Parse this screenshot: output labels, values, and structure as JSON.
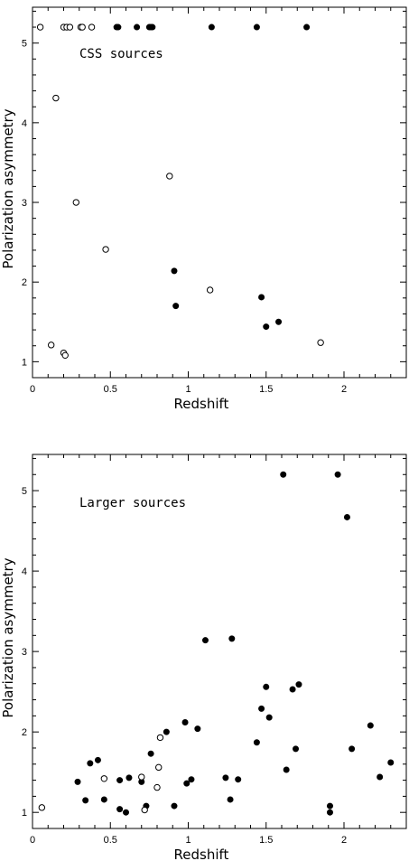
{
  "chart_data": [
    {
      "type": "scatter",
      "title": "",
      "annotation": "CSS sources",
      "xlabel": "Redshift",
      "ylabel": "Polarization asymmetry",
      "xlim": [
        0,
        2.4
      ],
      "ylim": [
        0.8,
        5.45
      ],
      "xticks": [
        0,
        0.5,
        1,
        1.5,
        2
      ],
      "xtick_labels": [
        "0",
        "0.5",
        "1",
        "1.5",
        "2"
      ],
      "yticks": [
        1,
        2,
        3,
        4,
        5
      ],
      "ytick_labels": [
        "1",
        "2",
        "3",
        "4",
        "5"
      ],
      "legend": "none",
      "grid": false,
      "series": [
        {
          "marker": "filled",
          "points": [
            [
              0.54,
              5.2
            ],
            [
              0.55,
              5.2
            ],
            [
              0.67,
              5.2
            ],
            [
              0.75,
              5.2
            ],
            [
              0.76,
              5.2
            ],
            [
              0.77,
              5.2
            ],
            [
              1.15,
              5.2
            ],
            [
              1.44,
              5.2
            ],
            [
              1.76,
              5.2
            ],
            [
              0.91,
              2.14
            ],
            [
              0.92,
              1.7
            ],
            [
              1.47,
              1.81
            ],
            [
              1.5,
              1.44
            ],
            [
              1.58,
              1.5
            ]
          ]
        },
        {
          "marker": "open",
          "points": [
            [
              0.05,
              5.2
            ],
            [
              0.2,
              5.2
            ],
            [
              0.22,
              5.2
            ],
            [
              0.24,
              5.2
            ],
            [
              0.31,
              5.2
            ],
            [
              0.32,
              5.2
            ],
            [
              0.38,
              5.2
            ],
            [
              0.15,
              4.31
            ],
            [
              0.28,
              3.0
            ],
            [
              0.47,
              2.41
            ],
            [
              0.88,
              3.33
            ],
            [
              1.14,
              1.9
            ],
            [
              0.12,
              1.21
            ],
            [
              0.2,
              1.11
            ],
            [
              0.21,
              1.08
            ],
            [
              1.85,
              1.24
            ]
          ]
        }
      ]
    },
    {
      "type": "scatter",
      "title": "",
      "annotation": "Larger sources",
      "xlabel": "Redshift",
      "ylabel": "Polarization asymmetry",
      "xlim": [
        0,
        2.4
      ],
      "ylim": [
        0.8,
        5.45
      ],
      "xticks": [
        0,
        0.5,
        1,
        1.5,
        2
      ],
      "xtick_labels": [
        "0",
        "0.5",
        "1",
        "1.5",
        "2"
      ],
      "yticks": [
        1,
        2,
        3,
        4,
        5
      ],
      "ytick_labels": [
        "1",
        "2",
        "3",
        "4",
        "5"
      ],
      "legend": "none",
      "grid": false,
      "series": [
        {
          "marker": "filled",
          "points": [
            [
              1.61,
              5.2
            ],
            [
              1.96,
              5.2
            ],
            [
              2.02,
              4.67
            ],
            [
              0.29,
              1.38
            ],
            [
              0.34,
              1.15
            ],
            [
              0.37,
              1.61
            ],
            [
              0.42,
              1.65
            ],
            [
              0.46,
              1.16
            ],
            [
              0.56,
              1.4
            ],
            [
              0.56,
              1.04
            ],
            [
              0.6,
              1.0
            ],
            [
              0.62,
              1.43
            ],
            [
              0.7,
              1.38
            ],
            [
              0.73,
              1.08
            ],
            [
              0.76,
              1.73
            ],
            [
              0.86,
              2.0
            ],
            [
              0.91,
              1.08
            ],
            [
              0.98,
              2.12
            ],
            [
              0.99,
              1.36
            ],
            [
              1.02,
              1.41
            ],
            [
              1.06,
              2.04
            ],
            [
              1.11,
              3.14
            ],
            [
              1.24,
              1.43
            ],
            [
              1.27,
              1.16
            ],
            [
              1.28,
              3.16
            ],
            [
              1.32,
              1.41
            ],
            [
              1.44,
              1.87
            ],
            [
              1.47,
              2.29
            ],
            [
              1.5,
              2.56
            ],
            [
              1.52,
              2.18
            ],
            [
              1.63,
              1.53
            ],
            [
              1.67,
              2.53
            ],
            [
              1.69,
              1.79
            ],
            [
              1.71,
              2.59
            ],
            [
              1.91,
              1.08
            ],
            [
              1.91,
              1.0
            ],
            [
              2.05,
              1.79
            ],
            [
              2.17,
              2.08
            ],
            [
              2.23,
              1.44
            ],
            [
              2.3,
              1.62
            ]
          ]
        },
        {
          "marker": "open",
          "points": [
            [
              0.06,
              1.06
            ],
            [
              0.46,
              1.42
            ],
            [
              0.7,
              1.44
            ],
            [
              0.72,
              1.03
            ],
            [
              0.8,
              1.31
            ],
            [
              0.81,
              1.56
            ],
            [
              0.82,
              1.93
            ]
          ]
        }
      ]
    }
  ]
}
